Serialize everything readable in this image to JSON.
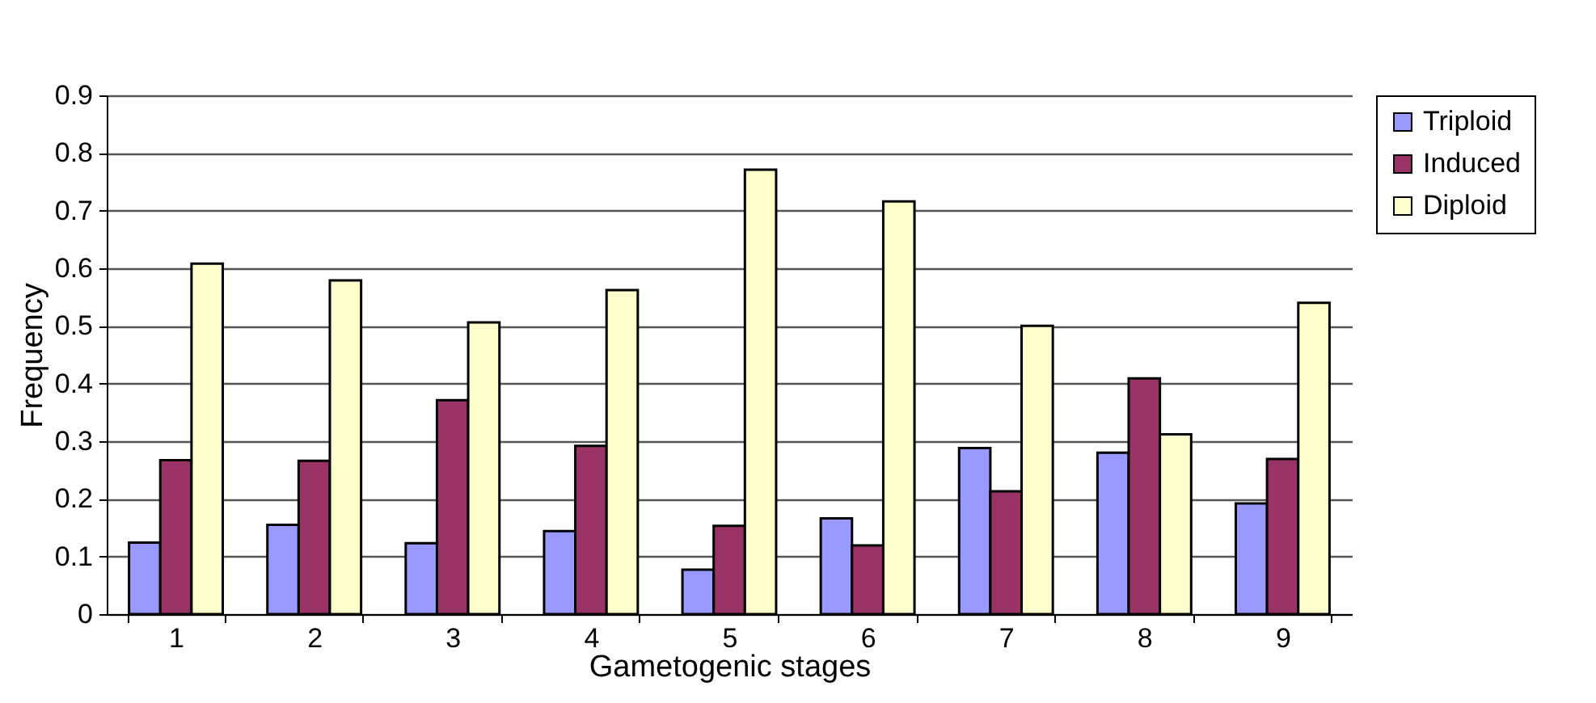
{
  "chart_data": {
    "type": "bar",
    "xlabel": "Gametogenic stages",
    "ylabel": "Frequency",
    "categories": [
      "1",
      "2",
      "3",
      "4",
      "5",
      "6",
      "7",
      "8",
      "9"
    ],
    "series": [
      {
        "name": "Triploid",
        "color": "#9999ff",
        "values": [
          0.124,
          0.155,
          0.123,
          0.144,
          0.077,
          0.166,
          0.288,
          0.28,
          0.192
        ]
      },
      {
        "name": "Induced",
        "color": "#993366",
        "values": [
          0.267,
          0.266,
          0.371,
          0.292,
          0.153,
          0.119,
          0.213,
          0.409,
          0.269
        ]
      },
      {
        "name": "Diploid",
        "color": "#ffffcc",
        "values": [
          0.608,
          0.579,
          0.506,
          0.562,
          0.771,
          0.716,
          0.5,
          0.312,
          0.54
        ]
      }
    ],
    "ylim": [
      0,
      0.9
    ],
    "yticks": [
      0,
      0.1,
      0.2,
      0.3,
      0.4,
      0.5,
      0.6,
      0.7,
      0.8,
      0.9
    ],
    "grid": "y",
    "legend": "right"
  }
}
